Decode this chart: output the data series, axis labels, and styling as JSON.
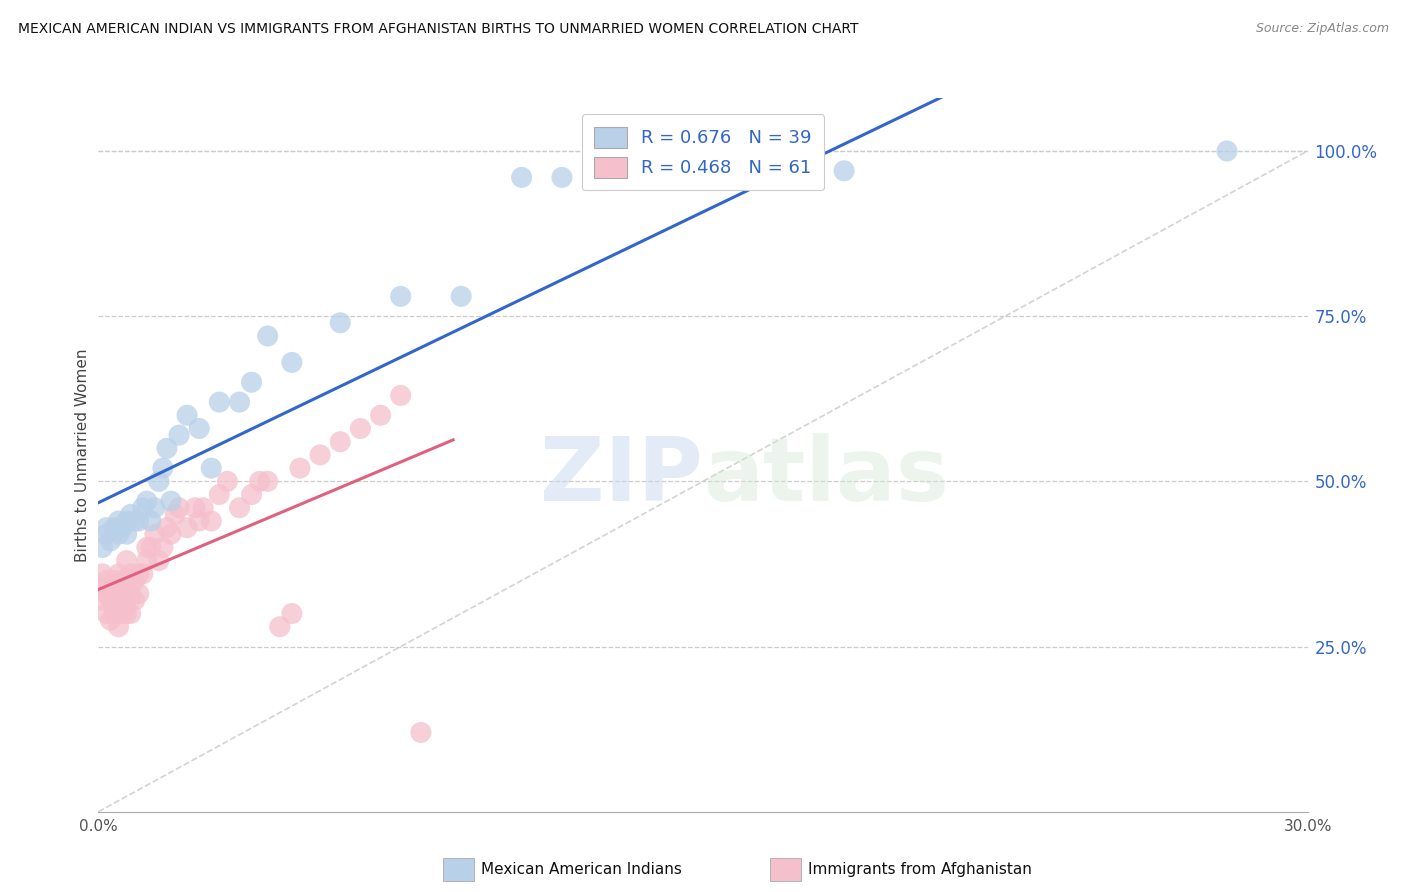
{
  "title": "MEXICAN AMERICAN INDIAN VS IMMIGRANTS FROM AFGHANISTAN BIRTHS TO UNMARRIED WOMEN CORRELATION CHART",
  "source": "Source: ZipAtlas.com",
  "ylabel": "Births to Unmarried Women",
  "xmin": 0.0,
  "xmax": 0.3,
  "ymin": 0.0,
  "ymax": 1.08,
  "yticks": [
    0.25,
    0.5,
    0.75,
    1.0
  ],
  "ytick_labels": [
    "25.0%",
    "50.0%",
    "75.0%",
    "100.0%"
  ],
  "xticks": [
    0.0,
    0.05,
    0.1,
    0.15,
    0.2,
    0.25,
    0.3
  ],
  "xtick_labels": [
    "0.0%",
    "",
    "",
    "",
    "",
    "",
    "30.0%"
  ],
  "blue_R": 0.676,
  "blue_N": 39,
  "pink_R": 0.468,
  "pink_N": 61,
  "blue_label": "Mexican American Indians",
  "pink_label": "Immigrants from Afghanistan",
  "watermark_zip": "ZIP",
  "watermark_atlas": "atlas",
  "blue_color": "#b8d0e8",
  "blue_line_color": "#3366cc",
  "pink_color": "#f5c0cc",
  "pink_line_color": "#e06080",
  "diag_line_color": "#c8c8c8",
  "blue_scatter_x": [
    0.001,
    0.002,
    0.002,
    0.003,
    0.004,
    0.005,
    0.005,
    0.006,
    0.007,
    0.007,
    0.008,
    0.009,
    0.01,
    0.011,
    0.012,
    0.013,
    0.014,
    0.015,
    0.016,
    0.017,
    0.018,
    0.02,
    0.022,
    0.025,
    0.028,
    0.03,
    0.035,
    0.038,
    0.042,
    0.048,
    0.06,
    0.075,
    0.09,
    0.105,
    0.115,
    0.125,
    0.155,
    0.185,
    0.28
  ],
  "blue_scatter_y": [
    0.4,
    0.42,
    0.43,
    0.41,
    0.43,
    0.44,
    0.42,
    0.43,
    0.42,
    0.44,
    0.45,
    0.44,
    0.44,
    0.46,
    0.47,
    0.44,
    0.46,
    0.5,
    0.52,
    0.55,
    0.47,
    0.57,
    0.6,
    0.58,
    0.52,
    0.62,
    0.62,
    0.65,
    0.72,
    0.68,
    0.74,
    0.78,
    0.78,
    0.96,
    0.96,
    0.96,
    0.97,
    0.97,
    1.0
  ],
  "pink_scatter_x": [
    0.001,
    0.001,
    0.001,
    0.002,
    0.002,
    0.002,
    0.003,
    0.003,
    0.003,
    0.004,
    0.004,
    0.004,
    0.005,
    0.005,
    0.005,
    0.005,
    0.006,
    0.006,
    0.006,
    0.007,
    0.007,
    0.007,
    0.007,
    0.008,
    0.008,
    0.008,
    0.009,
    0.009,
    0.01,
    0.01,
    0.011,
    0.012,
    0.012,
    0.013,
    0.014,
    0.015,
    0.016,
    0.017,
    0.018,
    0.019,
    0.02,
    0.022,
    0.024,
    0.025,
    0.026,
    0.028,
    0.03,
    0.032,
    0.035,
    0.038,
    0.04,
    0.042,
    0.045,
    0.048,
    0.05,
    0.055,
    0.06,
    0.065,
    0.07,
    0.075,
    0.08
  ],
  "pink_scatter_y": [
    0.32,
    0.34,
    0.36,
    0.3,
    0.33,
    0.35,
    0.29,
    0.32,
    0.34,
    0.3,
    0.32,
    0.35,
    0.28,
    0.3,
    0.33,
    0.36,
    0.3,
    0.32,
    0.35,
    0.3,
    0.32,
    0.35,
    0.38,
    0.3,
    0.33,
    0.36,
    0.32,
    0.35,
    0.33,
    0.36,
    0.36,
    0.38,
    0.4,
    0.4,
    0.42,
    0.38,
    0.4,
    0.43,
    0.42,
    0.45,
    0.46,
    0.43,
    0.46,
    0.44,
    0.46,
    0.44,
    0.48,
    0.5,
    0.46,
    0.48,
    0.5,
    0.5,
    0.28,
    0.3,
    0.52,
    0.54,
    0.56,
    0.58,
    0.6,
    0.63,
    0.12
  ]
}
